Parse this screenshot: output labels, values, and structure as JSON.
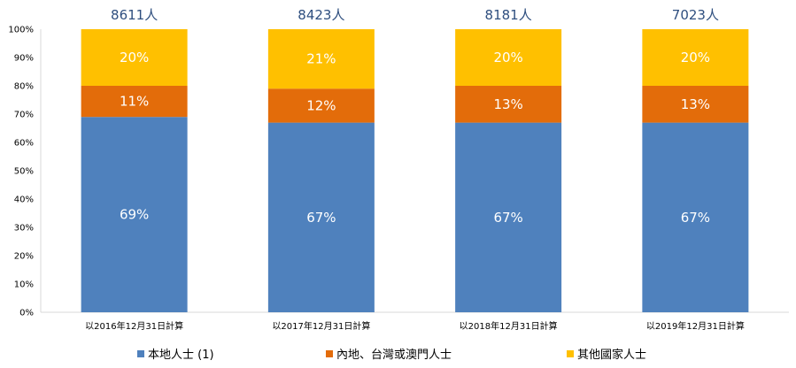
{
  "chart_data": {
    "type": "bar",
    "stacked": true,
    "percent": true,
    "categories": [
      "以2016年12月31日計算",
      "以2017年12月31日計算",
      "以2018年12月31日計算",
      "以2019年12月31日計算"
    ],
    "totals": [
      "8611人",
      "8423人",
      "8181人",
      "7023人"
    ],
    "series": [
      {
        "name": "本地人士 (1)",
        "values": [
          69,
          67,
          67,
          67
        ],
        "labels": [
          "69%",
          "67%",
          "67%",
          "67%"
        ],
        "color": "#4f81bd"
      },
      {
        "name": "內地、台灣或澳門人士",
        "values": [
          11,
          12,
          13,
          13
        ],
        "labels": [
          "11%",
          "12%",
          "13%",
          "13%"
        ],
        "color": "#e36c0a"
      },
      {
        "name": "其他國家人士",
        "values": [
          20,
          21,
          20,
          20
        ],
        "labels": [
          "20%",
          "21%",
          "20%",
          "20%"
        ],
        "color": "#ffc000"
      }
    ],
    "yticks": [
      "0%",
      "10%",
      "20%",
      "30%",
      "40%",
      "50%",
      "60%",
      "70%",
      "80%",
      "90%",
      "100%"
    ],
    "ylim": [
      0,
      100
    ],
    "grid": false,
    "legend": "bottom"
  }
}
